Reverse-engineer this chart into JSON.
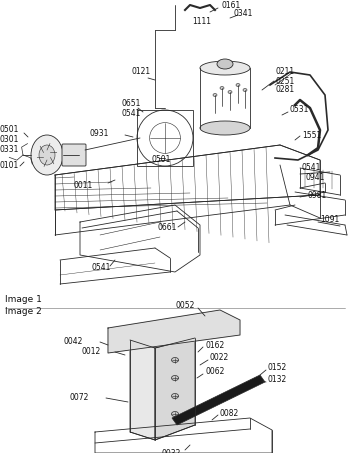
{
  "bg_color": "#ffffff",
  "line_color": "#2a2a2a",
  "image1_label": "Image 1",
  "image2_label": "Image 2"
}
